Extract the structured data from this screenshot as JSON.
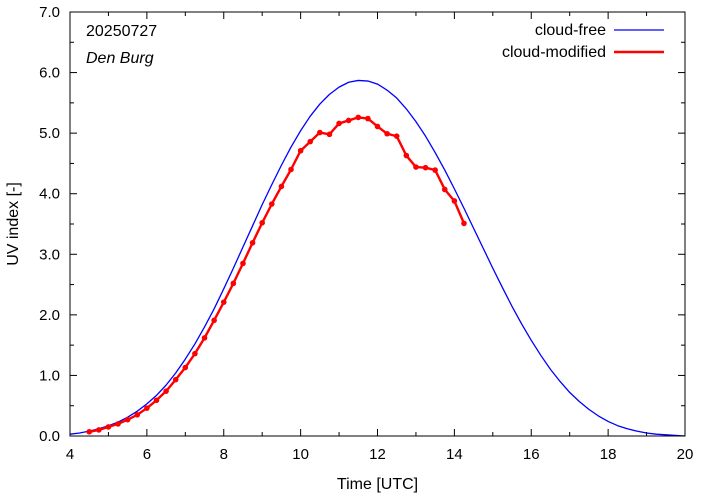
{
  "chart_data": {
    "type": "line",
    "title": "",
    "annotations": {
      "date": "20250727",
      "location": "Den Burg"
    },
    "xlabel": "Time  [UTC]",
    "ylabel": "UV index  [-]",
    "xlim": [
      4,
      20
    ],
    "ylim": [
      0,
      7
    ],
    "x_ticks": [
      4,
      6,
      8,
      10,
      12,
      14,
      16,
      18,
      20
    ],
    "x_tick_labels": [
      "4",
      "6",
      "8",
      "10",
      "12",
      "14",
      "16",
      "18",
      "20"
    ],
    "y_ticks": [
      0,
      1,
      2,
      3,
      4,
      5,
      6,
      7
    ],
    "y_tick_labels": [
      "0.0",
      "1.0",
      "2.0",
      "3.0",
      "4.0",
      "5.0",
      "6.0",
      "7.0"
    ],
    "legend_position": "top-right",
    "grid": false,
    "series": [
      {
        "name": "cloud-free",
        "color": "#0000ff",
        "marker": "none",
        "x": [
          4.0,
          4.25,
          4.5,
          4.75,
          5.0,
          5.25,
          5.5,
          5.75,
          6.0,
          6.25,
          6.5,
          6.75,
          7.0,
          7.25,
          7.5,
          7.75,
          8.0,
          8.25,
          8.5,
          8.75,
          9.0,
          9.25,
          9.5,
          9.75,
          10.0,
          10.25,
          10.5,
          10.75,
          11.0,
          11.25,
          11.5,
          11.75,
          12.0,
          12.25,
          12.5,
          12.75,
          13.0,
          13.25,
          13.5,
          13.75,
          14.0,
          14.25,
          14.5,
          14.75,
          15.0,
          15.25,
          15.5,
          15.75,
          16.0,
          16.25,
          16.5,
          16.75,
          17.0,
          17.25,
          17.5,
          17.75,
          18.0,
          18.25,
          18.5,
          18.75,
          19.0,
          19.25,
          19.5,
          19.75,
          20.0
        ],
        "y": [
          0.03,
          0.05,
          0.08,
          0.12,
          0.17,
          0.23,
          0.31,
          0.41,
          0.53,
          0.67,
          0.84,
          1.04,
          1.27,
          1.52,
          1.8,
          2.1,
          2.43,
          2.77,
          3.12,
          3.47,
          3.82,
          4.15,
          4.47,
          4.77,
          5.04,
          5.28,
          5.48,
          5.64,
          5.76,
          5.84,
          5.87,
          5.86,
          5.81,
          5.71,
          5.58,
          5.4,
          5.19,
          4.95,
          4.68,
          4.39,
          4.08,
          3.76,
          3.43,
          3.1,
          2.77,
          2.45,
          2.14,
          1.85,
          1.58,
          1.33,
          1.1,
          0.9,
          0.72,
          0.57,
          0.44,
          0.33,
          0.24,
          0.17,
          0.12,
          0.08,
          0.05,
          0.03,
          0.02,
          0.01,
          0.0
        ]
      },
      {
        "name": "cloud-modified",
        "color": "#ff0000",
        "marker": "circle",
        "x": [
          4.5,
          4.75,
          5.0,
          5.25,
          5.5,
          5.75,
          6.0,
          6.25,
          6.5,
          6.75,
          7.0,
          7.25,
          7.5,
          7.75,
          8.0,
          8.25,
          8.5,
          8.75,
          9.0,
          9.25,
          9.5,
          9.75,
          10.0,
          10.25,
          10.5,
          10.75,
          11.0,
          11.25,
          11.5,
          11.75,
          12.0,
          12.25,
          12.5,
          12.75,
          13.0,
          13.25,
          13.5,
          13.75,
          14.0,
          14.25
        ],
        "y": [
          0.07,
          0.1,
          0.15,
          0.2,
          0.27,
          0.35,
          0.46,
          0.59,
          0.74,
          0.93,
          1.13,
          1.36,
          1.62,
          1.91,
          2.21,
          2.52,
          2.85,
          3.19,
          3.52,
          3.83,
          4.12,
          4.4,
          4.71,
          4.86,
          5.01,
          4.98,
          5.16,
          5.21,
          5.26,
          5.24,
          5.11,
          4.99,
          4.95,
          4.63,
          4.44,
          4.43,
          4.39,
          4.07,
          3.88,
          3.51
        ]
      }
    ]
  }
}
